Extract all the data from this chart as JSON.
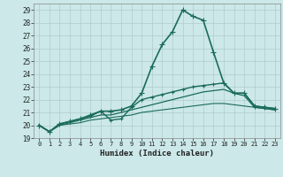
{
  "title": "",
  "xlabel": "Humidex (Indice chaleur)",
  "ylabel": "",
  "background_color": "#cce8e8",
  "grid_color": "#b0cccc",
  "line_color": "#1a6b5a",
  "xlim": [
    -0.5,
    23.5
  ],
  "ylim": [
    19.0,
    29.5
  ],
  "yticks": [
    19,
    20,
    21,
    22,
    23,
    24,
    25,
    26,
    27,
    28,
    29
  ],
  "xticks": [
    0,
    1,
    2,
    3,
    4,
    5,
    6,
    7,
    8,
    9,
    10,
    11,
    12,
    13,
    14,
    15,
    16,
    17,
    18,
    19,
    20,
    21,
    22,
    23
  ],
  "series": [
    {
      "x": [
        0,
        1,
        2,
        3,
        4,
        5,
        6,
        7,
        8,
        9,
        10,
        11,
        12,
        13,
        14,
        15,
        16,
        17,
        18,
        19,
        20,
        21,
        22,
        23
      ],
      "y": [
        20.0,
        19.5,
        20.1,
        20.3,
        20.5,
        20.8,
        21.1,
        21.1,
        21.2,
        21.5,
        22.5,
        24.6,
        26.3,
        27.3,
        29.0,
        28.5,
        28.2,
        25.7,
        23.3,
        22.5,
        22.5,
        21.5,
        21.4,
        21.3
      ],
      "marker": "+",
      "linewidth": 1.2,
      "markersize": 4
    },
    {
      "x": [
        0,
        1,
        2,
        3,
        4,
        5,
        6,
        7,
        8,
        9,
        10,
        11,
        12,
        13,
        14,
        15,
        16,
        17,
        18,
        19,
        20,
        21,
        22,
        23
      ],
      "y": [
        20.0,
        19.5,
        20.1,
        20.3,
        20.5,
        20.7,
        21.1,
        20.4,
        20.5,
        21.4,
        22.0,
        22.2,
        22.4,
        22.6,
        22.8,
        23.0,
        23.1,
        23.2,
        23.3,
        22.5,
        22.5,
        21.5,
        21.4,
        21.3
      ],
      "marker": "+",
      "linewidth": 1.0,
      "markersize": 3
    },
    {
      "x": [
        0,
        1,
        2,
        3,
        4,
        5,
        6,
        7,
        8,
        9,
        10,
        11,
        12,
        13,
        14,
        15,
        16,
        17,
        18,
        19,
        20,
        21,
        22,
        23
      ],
      "y": [
        20.0,
        19.5,
        20.0,
        20.2,
        20.4,
        20.6,
        20.8,
        20.8,
        21.0,
        21.2,
        21.4,
        21.6,
        21.8,
        22.0,
        22.2,
        22.4,
        22.6,
        22.7,
        22.8,
        22.5,
        22.3,
        21.4,
        21.3,
        21.2
      ],
      "marker": null,
      "linewidth": 0.9,
      "markersize": 0
    },
    {
      "x": [
        0,
        1,
        2,
        3,
        4,
        5,
        6,
        7,
        8,
        9,
        10,
        11,
        12,
        13,
        14,
        15,
        16,
        17,
        18,
        19,
        20,
        21,
        22,
        23
      ],
      "y": [
        20.0,
        19.5,
        20.0,
        20.1,
        20.2,
        20.4,
        20.5,
        20.6,
        20.7,
        20.8,
        21.0,
        21.1,
        21.2,
        21.3,
        21.4,
        21.5,
        21.6,
        21.7,
        21.7,
        21.6,
        21.5,
        21.4,
        21.3,
        21.2
      ],
      "marker": null,
      "linewidth": 0.8,
      "markersize": 0
    }
  ]
}
